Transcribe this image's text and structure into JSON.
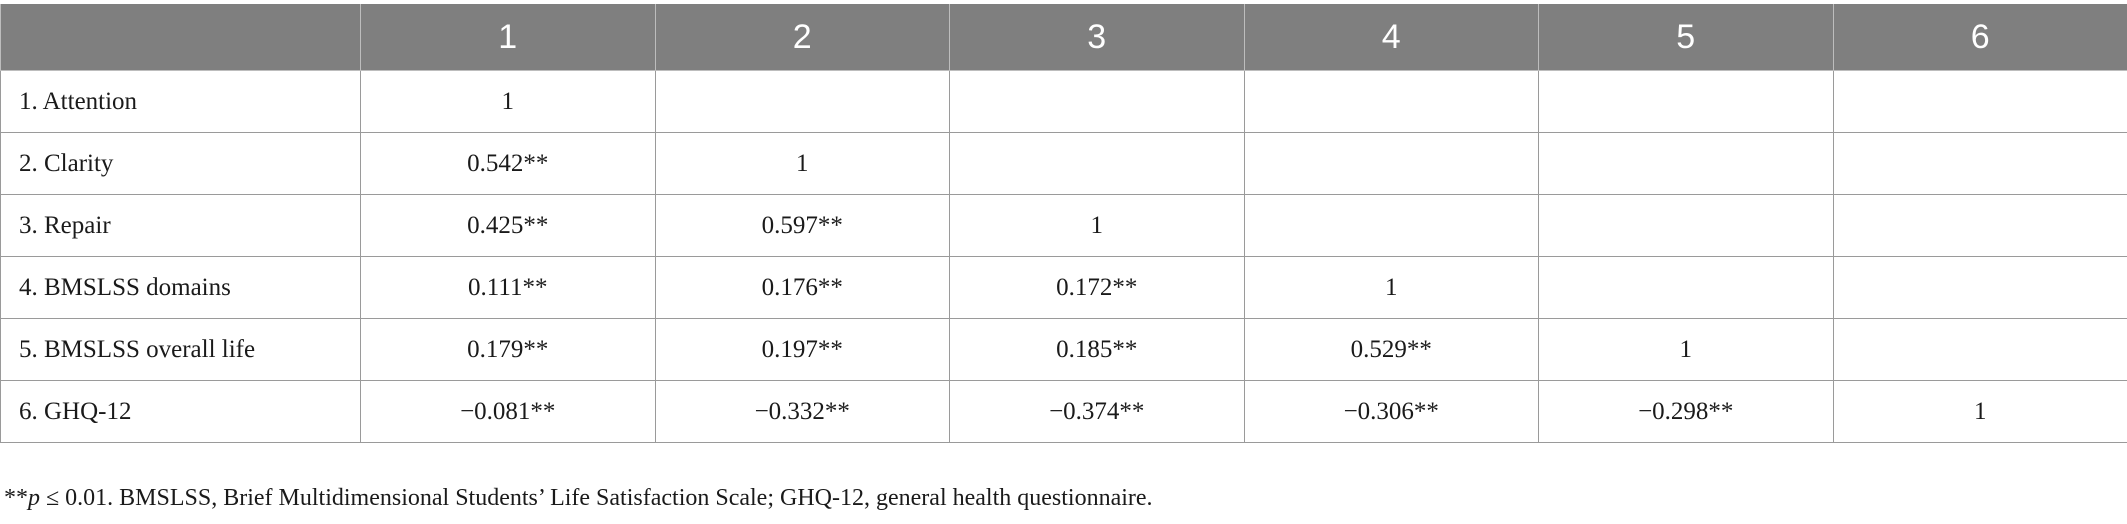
{
  "table": {
    "header": [
      "",
      "1",
      "2",
      "3",
      "4",
      "5",
      "6"
    ],
    "rows": [
      {
        "label": "1. Attention",
        "cells": [
          "1",
          "",
          "",
          "",
          "",
          ""
        ]
      },
      {
        "label": "2. Clarity",
        "cells": [
          "0.542**",
          "1",
          "",
          "",
          "",
          ""
        ]
      },
      {
        "label": "3. Repair",
        "cells": [
          "0.425**",
          "0.597**",
          "1",
          "",
          "",
          ""
        ]
      },
      {
        "label": "4. BMSLSS domains",
        "cells": [
          "0.111**",
          "0.176**",
          "0.172**",
          "1",
          "",
          ""
        ]
      },
      {
        "label": "5. BMSLSS overall life",
        "cells": [
          "0.179**",
          "0.197**",
          "0.185**",
          "0.529**",
          "1",
          ""
        ]
      },
      {
        "label": "6. GHQ-12",
        "cells": [
          "−0.081**",
          "−0.332**",
          "−0.374**",
          "−0.306**",
          "−0.298**",
          "1"
        ]
      }
    ]
  },
  "footnote": {
    "prefix": "**",
    "p_symbol": "p",
    "text": " ≤ 0.01. BMSLSS, Brief Multidimensional Students’ Life Satisfaction Scale; GHQ-12, general health questionnaire."
  },
  "colors": {
    "header_bg": "#7f7f7f",
    "header_text": "#ffffff",
    "grid": "#9a9a9a"
  }
}
